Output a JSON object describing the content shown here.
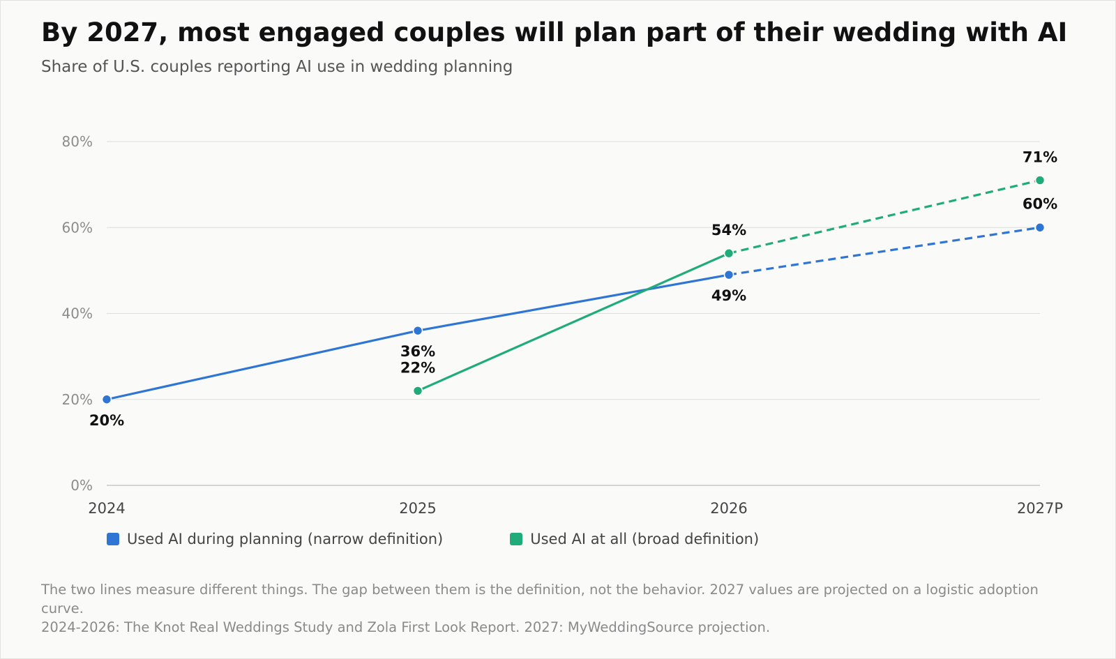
{
  "header": {
    "title": "By 2027, most engaged couples will plan part of their wedding with AI",
    "subtitle": "Share of U.S. couples reporting AI use in wedding planning"
  },
  "chart_data": {
    "type": "line",
    "x": [
      "2024",
      "2025",
      "2026",
      "2027P"
    ],
    "ylim": [
      0,
      80
    ],
    "yticks": [
      0,
      20,
      40,
      60,
      80
    ],
    "ytick_labels": [
      "0%",
      "20%",
      "40%",
      "60%",
      "80%"
    ],
    "grid": true,
    "legend_placement": "bottom-left",
    "projected_from_index": 2,
    "series": [
      {
        "name": "Used AI during planning (narrow definition)",
        "color": "#2e75d4",
        "values": [
          20,
          36,
          49,
          60
        ],
        "labels": [
          "20%",
          "36%",
          "49%",
          "60%"
        ]
      },
      {
        "name": "Used AI at all (broad definition)",
        "color": "#1fab7a",
        "values": [
          null,
          22,
          54,
          71
        ],
        "labels": [
          null,
          "22%",
          "54%",
          "71%"
        ]
      }
    ]
  },
  "footer": {
    "note": "The two lines measure different things. The gap between them is the definition, not the behavior. 2027 values are projected on a logistic adoption curve.",
    "source": "2024-2026: The Knot Real Weddings Study and Zola First Look Report. 2027: MyWeddingSource projection."
  }
}
